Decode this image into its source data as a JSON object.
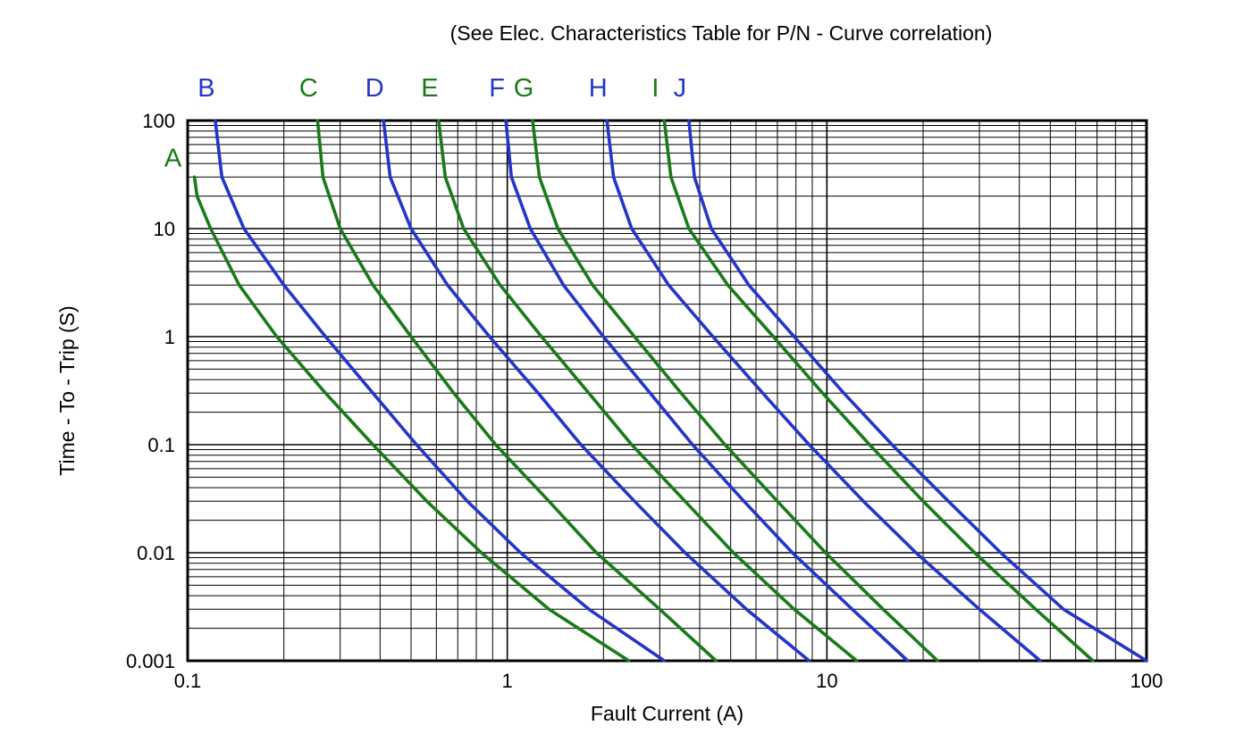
{
  "chart_data": {
    "type": "line",
    "title": "(See Elec. Characteristics Table for P/N - Curve correlation)",
    "xlabel": "Fault Current (A)",
    "ylabel": "Time - To - Trip (S)",
    "x_scale": "log",
    "y_scale": "log",
    "xlim": [
      0.1,
      100
    ],
    "ylim": [
      0.001,
      100
    ],
    "x_ticks": [
      "0.1",
      "1",
      "10",
      "100"
    ],
    "y_ticks": [
      "100",
      "10",
      "1",
      "0.1",
      "0.01",
      "0.001"
    ],
    "grid": true,
    "legend_position": "labels-above-curves",
    "colors": {
      "green": "#1a7a1a",
      "blue": "#2436c8",
      "grid": "#000000",
      "text": "#000000"
    },
    "series": [
      {
        "name": "A",
        "color": "green",
        "label_placement": "start",
        "points": [
          [
            0.105,
            30
          ],
          [
            0.107,
            20
          ],
          [
            0.118,
            10
          ],
          [
            0.145,
            3
          ],
          [
            0.19,
            1
          ],
          [
            0.27,
            0.3
          ],
          [
            0.38,
            0.1
          ],
          [
            0.56,
            0.03
          ],
          [
            0.83,
            0.01
          ],
          [
            1.35,
            0.003
          ],
          [
            2.4,
            0.001
          ]
        ]
      },
      {
        "name": "B",
        "color": "blue",
        "label_placement": "top",
        "points": [
          [
            0.122,
            100
          ],
          [
            0.128,
            30
          ],
          [
            0.15,
            10
          ],
          [
            0.2,
            3
          ],
          [
            0.27,
            1
          ],
          [
            0.38,
            0.3
          ],
          [
            0.52,
            0.1
          ],
          [
            0.75,
            0.03
          ],
          [
            1.1,
            0.01
          ],
          [
            1.8,
            0.003
          ],
          [
            3.1,
            0.001
          ]
        ]
      },
      {
        "name": "C",
        "color": "green",
        "label_placement": "top",
        "points": [
          [
            0.255,
            100
          ],
          [
            0.265,
            30
          ],
          [
            0.3,
            10
          ],
          [
            0.38,
            3
          ],
          [
            0.5,
            1
          ],
          [
            0.68,
            0.3
          ],
          [
            0.92,
            0.1
          ],
          [
            1.35,
            0.03
          ],
          [
            1.9,
            0.01
          ],
          [
            3.0,
            0.003
          ],
          [
            4.5,
            0.001
          ]
        ]
      },
      {
        "name": "D",
        "color": "blue",
        "label_placement": "top",
        "points": [
          [
            0.41,
            100
          ],
          [
            0.43,
            30
          ],
          [
            0.5,
            10
          ],
          [
            0.65,
            3
          ],
          [
            0.88,
            1
          ],
          [
            1.25,
            0.3
          ],
          [
            1.7,
            0.1
          ],
          [
            2.5,
            0.03
          ],
          [
            3.6,
            0.01
          ],
          [
            5.6,
            0.003
          ],
          [
            8.8,
            0.001
          ]
        ]
      },
      {
        "name": "E",
        "color": "green",
        "label_placement": "top",
        "points": [
          [
            0.61,
            100
          ],
          [
            0.64,
            30
          ],
          [
            0.73,
            10
          ],
          [
            0.95,
            3
          ],
          [
            1.28,
            1
          ],
          [
            1.8,
            0.3
          ],
          [
            2.45,
            0.1
          ],
          [
            3.6,
            0.03
          ],
          [
            5.1,
            0.01
          ],
          [
            7.9,
            0.003
          ],
          [
            12.4,
            0.001
          ]
        ]
      },
      {
        "name": "F",
        "color": "blue",
        "label_placement": "top",
        "points": [
          [
            0.99,
            100
          ],
          [
            1.03,
            30
          ],
          [
            1.18,
            10
          ],
          [
            1.5,
            3
          ],
          [
            2.0,
            1
          ],
          [
            2.8,
            0.3
          ],
          [
            3.8,
            0.1
          ],
          [
            5.5,
            0.03
          ],
          [
            7.8,
            0.01
          ],
          [
            12,
            0.003
          ],
          [
            17.9,
            0.001
          ]
        ]
      },
      {
        "name": "G",
        "color": "green",
        "label_placement": "top",
        "points": [
          [
            1.2,
            100
          ],
          [
            1.26,
            30
          ],
          [
            1.44,
            10
          ],
          [
            1.85,
            3
          ],
          [
            2.5,
            1
          ],
          [
            3.5,
            0.3
          ],
          [
            4.8,
            0.1
          ],
          [
            7.0,
            0.03
          ],
          [
            9.9,
            0.01
          ],
          [
            15,
            0.003
          ],
          [
            22.2,
            0.001
          ]
        ]
      },
      {
        "name": "H",
        "color": "blue",
        "label_placement": "top",
        "points": [
          [
            2.05,
            100
          ],
          [
            2.15,
            30
          ],
          [
            2.45,
            10
          ],
          [
            3.2,
            3
          ],
          [
            4.4,
            1
          ],
          [
            6.3,
            0.3
          ],
          [
            8.8,
            0.1
          ],
          [
            13,
            0.03
          ],
          [
            19,
            0.01
          ],
          [
            30,
            0.003
          ],
          [
            46.5,
            0.001
          ]
        ]
      },
      {
        "name": "I",
        "color": "green",
        "label_placement": "top",
        "points": [
          [
            3.1,
            100
          ],
          [
            3.25,
            30
          ],
          [
            3.7,
            10
          ],
          [
            4.9,
            3
          ],
          [
            6.8,
            1
          ],
          [
            9.7,
            0.3
          ],
          [
            13.6,
            0.1
          ],
          [
            20,
            0.03
          ],
          [
            29,
            0.01
          ],
          [
            45,
            0.003
          ],
          [
            68,
            0.001
          ]
        ]
      },
      {
        "name": "J",
        "color": "blue",
        "label_placement": "top",
        "points": [
          [
            3.7,
            100
          ],
          [
            3.85,
            30
          ],
          [
            4.35,
            10
          ],
          [
            5.7,
            3
          ],
          [
            7.9,
            1
          ],
          [
            11.3,
            0.3
          ],
          [
            16,
            0.1
          ],
          [
            24,
            0.03
          ],
          [
            35,
            0.01
          ],
          [
            55,
            0.003
          ],
          [
            100,
            0.001
          ]
        ]
      }
    ]
  }
}
